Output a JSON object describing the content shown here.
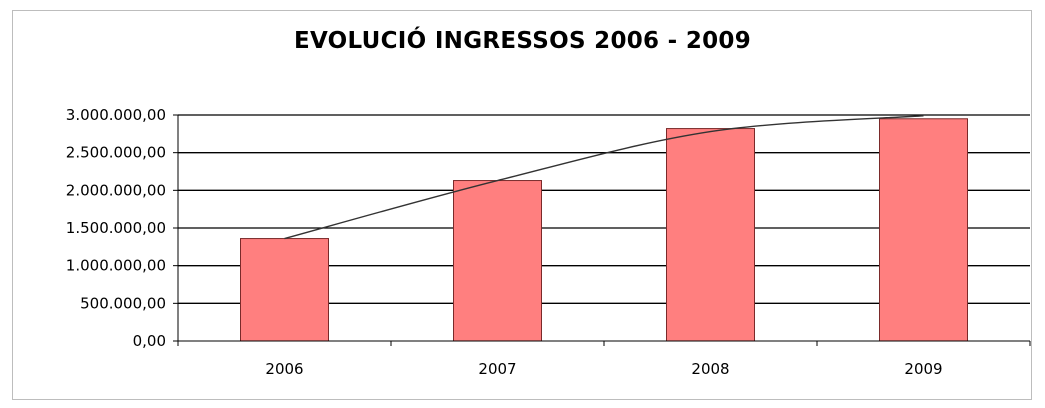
{
  "chart_data": {
    "type": "bar",
    "title": "EVOLUCIÓ INGRESSOS 2006 - 2009",
    "categories": [
      "2006",
      "2007",
      "2008",
      "2009"
    ],
    "values": [
      1360000,
      2130000,
      2820000,
      2950000
    ],
    "trend_line": [
      1360000,
      2130000,
      2780000,
      2990000
    ],
    "ylim": [
      0,
      3000000
    ],
    "yticks": [
      0,
      500000,
      1000000,
      1500000,
      2000000,
      2500000,
      3000000
    ],
    "ytick_labels": [
      "0,00",
      "500.000,00",
      "1.000.000,00",
      "1.500.000,00",
      "2.000.000,00",
      "2.500.000,00",
      "3.000.000,00"
    ],
    "xlabel": "",
    "ylabel": "",
    "grid": true,
    "legend": "none",
    "bar_color": "#ff7f7f",
    "bar_edge_color": "#7a2a2a",
    "trend_color": "#333333"
  }
}
